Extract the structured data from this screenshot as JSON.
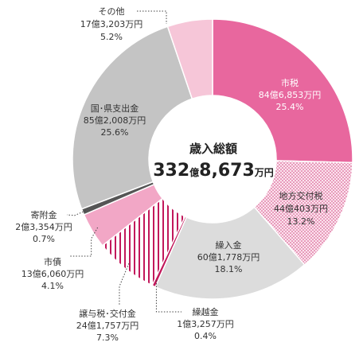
{
  "chart_data": {
    "type": "pie",
    "title": "歳入総額",
    "total": {
      "number": "332",
      "oku": "億",
      "rest": "8,673",
      "unit": "万円"
    },
    "colors": {
      "city_tax": "#e8679e",
      "local_allocation": "#f2b6cf",
      "transfer": "#dcdcdc",
      "carryover": "#c2185b",
      "transfer_tax": "#c2185b",
      "bonds": "#f2a7c6",
      "donations": "#555555",
      "national_pref": "#c4c4c4",
      "other": "#f6c6d8"
    },
    "slices": [
      {
        "key": "city_tax",
        "name": "市税",
        "amount": "84億6,853万円",
        "pct": "25.4%",
        "value": 25.4
      },
      {
        "key": "local_allocation",
        "name": "地方交付税",
        "amount": "44億403万円",
        "pct": "13.2%",
        "value": 13.2
      },
      {
        "key": "transfer",
        "name": "繰入金",
        "amount": "60億1,778万円",
        "pct": "18.1%",
        "value": 18.1
      },
      {
        "key": "carryover",
        "name": "繰越金",
        "amount": "1億3,257万円",
        "pct": "0.4%",
        "value": 0.4
      },
      {
        "key": "transfer_tax",
        "name": "譲与税･交付金",
        "amount": "24億1,757万円",
        "pct": "7.3%",
        "value": 7.3
      },
      {
        "key": "bonds",
        "name": "市債",
        "amount": "13億6,060万円",
        "pct": "4.1%",
        "value": 4.1
      },
      {
        "key": "donations",
        "name": "寄附金",
        "amount": "2億3,354万円",
        "pct": "0.7%",
        "value": 0.7
      },
      {
        "key": "national_pref",
        "name": "国･県支出金",
        "amount": "85億2,008万円",
        "pct": "25.6%",
        "value": 25.6
      },
      {
        "key": "other",
        "name": "その他",
        "amount": "17億3,203万円",
        "pct": "5.2%",
        "value": 5.2
      }
    ]
  }
}
